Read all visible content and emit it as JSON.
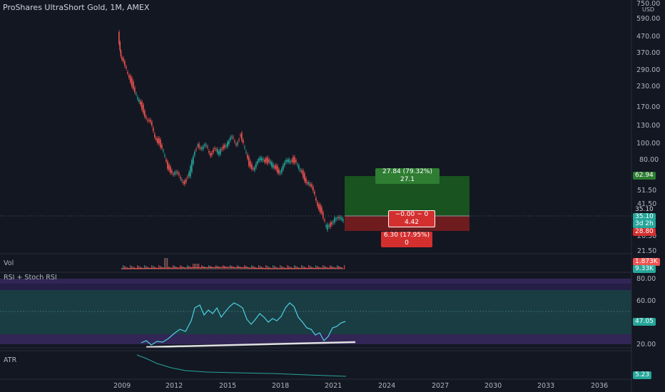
{
  "header": {
    "title": "ProShares UltraShort Gold, 1M, AMEX"
  },
  "price_axis": {
    "unit": "USD",
    "ticks": [
      "750.00",
      "590.00",
      "470.00",
      "370.00",
      "290.00",
      "230.00",
      "170.00",
      "130.00",
      "100.00",
      "80.00",
      "51.50",
      "41.50",
      "26.50",
      "21.50"
    ],
    "tags": {
      "target": "62.94",
      "last": "35.10",
      "cursor_price": "35.10",
      "countdown": "3d 2h",
      "stop": "28.80"
    }
  },
  "position_tool": {
    "profit_label": "27.84 (79.32%) 27.1",
    "center_label_1": "−0.00 ~ 0",
    "center_label_2": "4.42",
    "loss_label": "6.30 (17.95%) 0"
  },
  "volume_pane": {
    "label": "Vol",
    "value_1": "1.873K",
    "value_2": "9.33K"
  },
  "rsi_pane": {
    "label": "RSI + Stoch RSI",
    "ticks": [
      "80.00",
      "60.00",
      "20.00"
    ],
    "value": "47.05"
  },
  "atr_pane": {
    "label": "ATR",
    "value": "5.23"
  },
  "time_axis": {
    "ticks": [
      "2009",
      "2012",
      "2015",
      "2018",
      "2021",
      "2024",
      "2027",
      "2030",
      "2033",
      "2036"
    ]
  },
  "colors": {
    "up": "#26a69a",
    "down": "#ef5350",
    "profit": "#1b5e20",
    "loss": "#7f1d1d",
    "rsi_band": "#1e5b59",
    "rsi_purple": "#2d1b4e"
  }
}
